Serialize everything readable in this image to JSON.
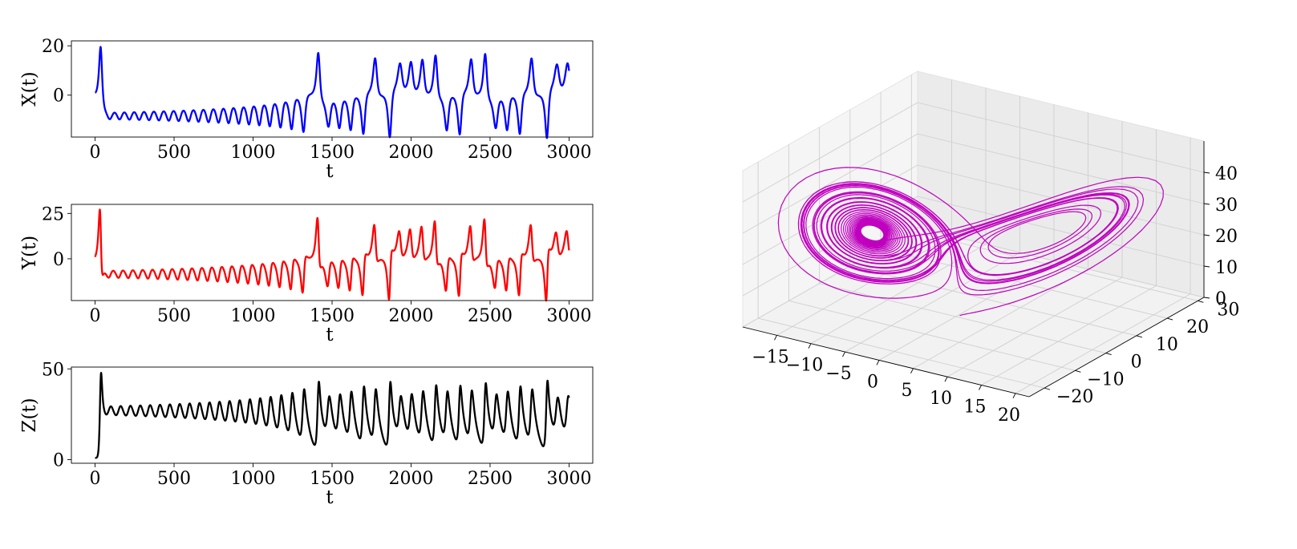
{
  "chart_data": [
    {
      "type": "line",
      "series": [
        {
          "color": "#0000ff",
          "peaks": [
            [
              40,
              20
            ],
            [
              1815,
              17.5
            ],
            [
              2250,
              17.4
            ],
            [
              2680,
              13.5
            ],
            [
              2760,
              14.5
            ],
            [
              2855,
              17.5
            ]
          ]
        }
      ],
      "xlabel": "t",
      "ylabel": "X(t)",
      "xlim": [
        -150,
        3150
      ],
      "ylim": [
        -17,
        22
      ],
      "xticks": [
        0,
        500,
        1000,
        1500,
        2000,
        2500,
        3000
      ],
      "yticks": [
        0,
        20
      ],
      "grid": false
    },
    {
      "type": "line",
      "series": [
        {
          "color": "#ff0000",
          "peaks": [
            [
              40,
              27.5
            ],
            [
              1815,
              23.5
            ],
            [
              2250,
              23
            ],
            [
              2680,
              16
            ],
            [
              2760,
              17.5
            ],
            [
              2855,
              23.5
            ]
          ]
        }
      ],
      "xlabel": "t",
      "ylabel": "Y(t)",
      "xlim": [
        -150,
        3150
      ],
      "ylim": [
        -23,
        30
      ],
      "xticks": [
        0,
        500,
        1000,
        1500,
        2000,
        2500,
        3000
      ],
      "yticks": [
        0,
        25
      ],
      "grid": false
    },
    {
      "type": "line",
      "series": [
        {
          "color": "#000000",
          "peaks": [
            [
              40,
              48
            ],
            [
              1815,
              43.5
            ],
            [
              2250,
              43
            ],
            [
              2855,
              43.5
            ]
          ]
        }
      ],
      "xlabel": "t",
      "ylabel": "Z(t)",
      "xlim": [
        -150,
        3150
      ],
      "ylim": [
        -2,
        51
      ],
      "xticks": [
        0,
        500,
        1000,
        1500,
        2000,
        2500,
        3000
      ],
      "yticks": [
        0,
        50
      ],
      "grid": false
    },
    {
      "type": "line3d",
      "series": [
        {
          "color": "#bf00bf"
        }
      ],
      "x_ticks": [
        "−15",
        "−10",
        "−5",
        "0",
        "5",
        "10",
        "15",
        "20"
      ],
      "y_ticks": [
        "−20",
        "−10",
        "0",
        "10",
        "20",
        "30"
      ],
      "z_ticks": [
        "0",
        "10",
        "20",
        "30",
        "40"
      ],
      "grid": true
    }
  ]
}
